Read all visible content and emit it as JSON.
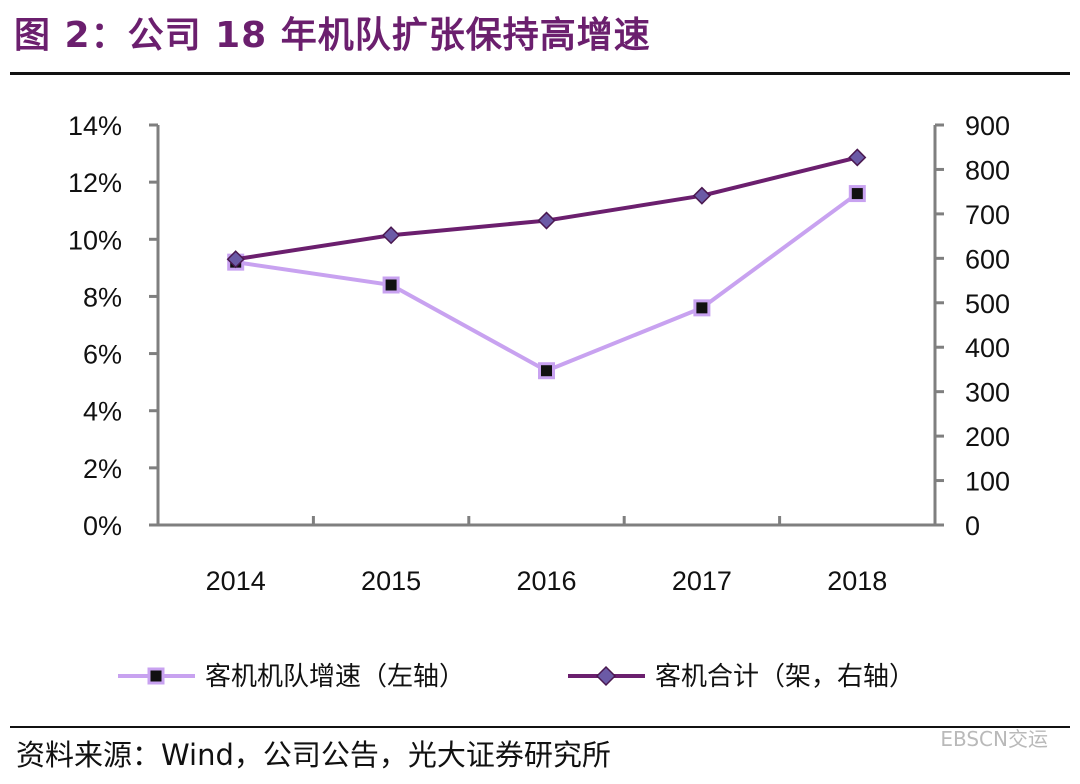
{
  "title": "图 2：公司 18 年机队扩张保持高增速",
  "source": "资料来源：Wind，公司公告，光大证券研究所",
  "watermark": "EBSCN交运",
  "colors": {
    "title": "#6b1f6e",
    "growth_line": "#c8a2f0",
    "total_line": "#6b1f6e",
    "axis": "#7f7f7f"
  },
  "chart_data": {
    "type": "line",
    "title": "",
    "categories": [
      "2014",
      "2015",
      "2016",
      "2017",
      "2018"
    ],
    "y_left": {
      "ticks": [
        "0%",
        "2%",
        "4%",
        "6%",
        "8%",
        "10%",
        "12%",
        "14%"
      ],
      "range": [
        0,
        14
      ]
    },
    "y_right": {
      "ticks": [
        "0",
        "100",
        "200",
        "300",
        "400",
        "500",
        "600",
        "700",
        "800",
        "900"
      ],
      "range": [
        0,
        900
      ]
    },
    "series": [
      {
        "name": "客机机队增速（左轴）",
        "axis": "left",
        "unit": "%",
        "marker": "square",
        "values": [
          9.2,
          8.4,
          5.4,
          7.6,
          11.6
        ]
      },
      {
        "name": "客机合计（架，右轴）",
        "axis": "right",
        "unit": "架",
        "marker": "diamond",
        "values": [
          598,
          652,
          685,
          741,
          827
        ]
      }
    ],
    "legend": "bottom",
    "grid": false
  }
}
